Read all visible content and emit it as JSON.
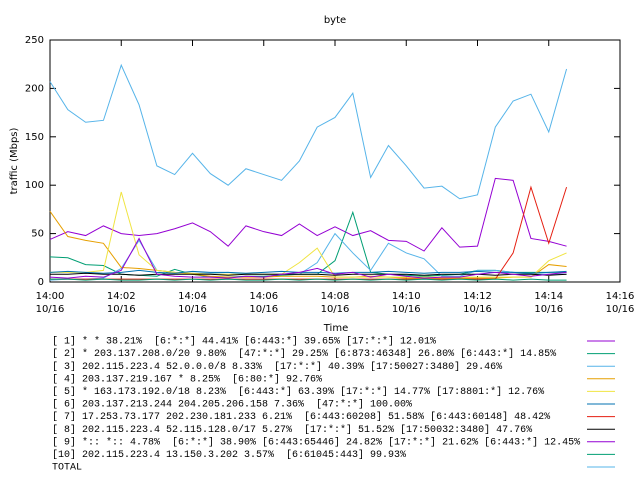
{
  "chart_data": {
    "type": "line",
    "title": "byte",
    "xlabel": "Time",
    "ylabel": "traffic (Mbps)",
    "x": [
      0,
      0.5,
      1,
      1.5,
      2,
      2.5,
      3,
      3.5,
      4,
      4.5,
      5,
      5.5,
      6,
      6.5,
      7,
      7.5,
      8,
      8.5,
      9,
      9.5,
      10,
      10.5,
      11,
      11.5,
      12,
      12.5,
      13,
      13.5,
      14,
      14.5
    ],
    "xlim": [
      0,
      16
    ],
    "xticks": [
      {
        "value": 0,
        "label": [
          "14:00",
          "10/16"
        ]
      },
      {
        "value": 2,
        "label": [
          "14:02",
          "10/16"
        ]
      },
      {
        "value": 4,
        "label": [
          "14:04",
          "10/16"
        ]
      },
      {
        "value": 6,
        "label": [
          "14:06",
          "10/16"
        ]
      },
      {
        "value": 8,
        "label": [
          "14:08",
          "10/16"
        ]
      },
      {
        "value": 10,
        "label": [
          "14:10",
          "10/16"
        ]
      },
      {
        "value": 12,
        "label": [
          "14:12",
          "10/16"
        ]
      },
      {
        "value": 14,
        "label": [
          "14:14",
          "10/16"
        ]
      },
      {
        "value": 16,
        "label": [
          "14:16",
          "10/16"
        ]
      }
    ],
    "ylim": [
      0,
      250
    ],
    "yticks": [
      0,
      50,
      100,
      150,
      200,
      250
    ],
    "grid": false,
    "series": [
      {
        "name": "[ 1] * * 38.21%  [6:*:*] 44.41% [6:443:*] 39.65% [17:*:*] 12.01%",
        "color": "#9400d3",
        "values": [
          44,
          52,
          48,
          58,
          50,
          48,
          50,
          55,
          61,
          52,
          37,
          58,
          52,
          48,
          60,
          48,
          57,
          48,
          53,
          43,
          42,
          32,
          56,
          36,
          37,
          107,
          105,
          45,
          42,
          37
        ]
      },
      {
        "name": "[ 2] * 203.137.208.0/20 9.80%  [47:*:*] 29.25% [6:873:46348] 26.80% [6:443:*] 14.85%",
        "color": "#009e73",
        "values": [
          26,
          25,
          18,
          17,
          8,
          7,
          6,
          13,
          8,
          5,
          5,
          6,
          6,
          7,
          8,
          8,
          22,
          72,
          10,
          8,
          7,
          6,
          7,
          8,
          12,
          12,
          10,
          10,
          10,
          10
        ]
      },
      {
        "name": "[ 3] 202.115.223.4 52.0.0.0/8 8.33%  [17:*:*] 40.39% [17:50027:3480] 29.46%",
        "color": "#56b4e9",
        "values": [
          2,
          3,
          3,
          4,
          14,
          43,
          12,
          10,
          9,
          9,
          10,
          8,
          8,
          8,
          8,
          20,
          50,
          30,
          12,
          40,
          30,
          24,
          6,
          6,
          12,
          12,
          10,
          8,
          8,
          8
        ]
      },
      {
        "name": "[ 4] 203.137.219.167 * 8.25%  [6:80:*] 92.76%",
        "color": "#e69f00",
        "values": [
          73,
          47,
          43,
          40,
          15,
          14,
          12,
          10,
          8,
          6,
          5,
          5,
          5,
          6,
          6,
          6,
          5,
          5,
          6,
          5,
          4,
          4,
          4,
          4,
          4,
          4,
          5,
          5,
          18,
          16
        ]
      },
      {
        "name": "[ 5] * 163.173.192.0/18 8.23%  [6:443:*] 63.39% [17:*:*] 14.77% [17:8801:*] 12.76%",
        "color": "#f0e442",
        "values": [
          10,
          10,
          10,
          12,
          93,
          28,
          12,
          10,
          9,
          8,
          8,
          8,
          8,
          8,
          20,
          35,
          5,
          5,
          5,
          5,
          5,
          5,
          5,
          5,
          5,
          5,
          5,
          5,
          22,
          30
        ]
      },
      {
        "name": "[ 6] 203.137.213.244 204.205.206.158 7.36%  [47:*:*] 100.00%",
        "color": "#0072b2",
        "values": [
          10,
          11,
          10,
          9,
          10,
          12,
          10,
          9,
          11,
          10,
          10,
          9,
          10,
          11,
          10,
          10,
          9,
          10,
          10,
          11,
          10,
          9,
          10,
          10,
          11,
          10,
          10,
          9,
          10,
          11
        ]
      },
      {
        "name": "[ 7] 17.253.73.177 202.230.181.233 6.21%  [6:443:60208] 51.58% [6:443:60148] 48.42%",
        "color": "#e51e10",
        "values": [
          3,
          3,
          3,
          3,
          3,
          3,
          3,
          3,
          3,
          3,
          3,
          3,
          3,
          3,
          3,
          3,
          3,
          3,
          3,
          3,
          3,
          3,
          3,
          3,
          3,
          3,
          30,
          98,
          40,
          98
        ]
      },
      {
        "name": "[ 8] 202.115.223.4 52.115.128.0/17 5.27%  [17:*:*] 51.52% [17:50032:3480] 47.76%",
        "color": "#000000",
        "values": [
          8,
          8,
          9,
          8,
          8,
          7,
          8,
          8,
          8,
          8,
          7,
          8,
          8,
          8,
          8,
          8,
          7,
          8,
          8,
          8,
          8,
          7,
          8,
          8,
          8,
          7,
          8,
          8,
          7,
          8
        ]
      },
      {
        "name": "[ 9] *:: *:: 4.78%  [6:*:*] 38.90% [6:443:65446] 24.82% [17:*:*] 21.62% [6:443:*] 12.45%",
        "color": "#9400d3",
        "values": [
          5,
          4,
          6,
          5,
          12,
          45,
          8,
          6,
          5,
          5,
          4,
          6,
          5,
          8,
          10,
          14,
          8,
          10,
          5,
          8,
          6,
          4,
          5,
          5,
          8,
          10,
          8,
          6,
          8,
          10
        ]
      },
      {
        "name": "[10] 202.115.223.4 13.150.3.202 3.57%  [6:61045:443] 99.93%",
        "color": "#009e73",
        "values": [
          3,
          3,
          2,
          3,
          2,
          2,
          3,
          2,
          3,
          2,
          3,
          2,
          2,
          3,
          2,
          3,
          2,
          3,
          2,
          3,
          2,
          3,
          2,
          3,
          2,
          3,
          2,
          3,
          2,
          2
        ]
      },
      {
        "name": "TOTAL",
        "color": "#56b4e9",
        "values": [
          207,
          178,
          165,
          167,
          224,
          183,
          120,
          111,
          133,
          112,
          100,
          117,
          111,
          105,
          125,
          160,
          170,
          195,
          108,
          141,
          120,
          97,
          99,
          86,
          90,
          160,
          187,
          194,
          155,
          220
        ]
      }
    ]
  }
}
